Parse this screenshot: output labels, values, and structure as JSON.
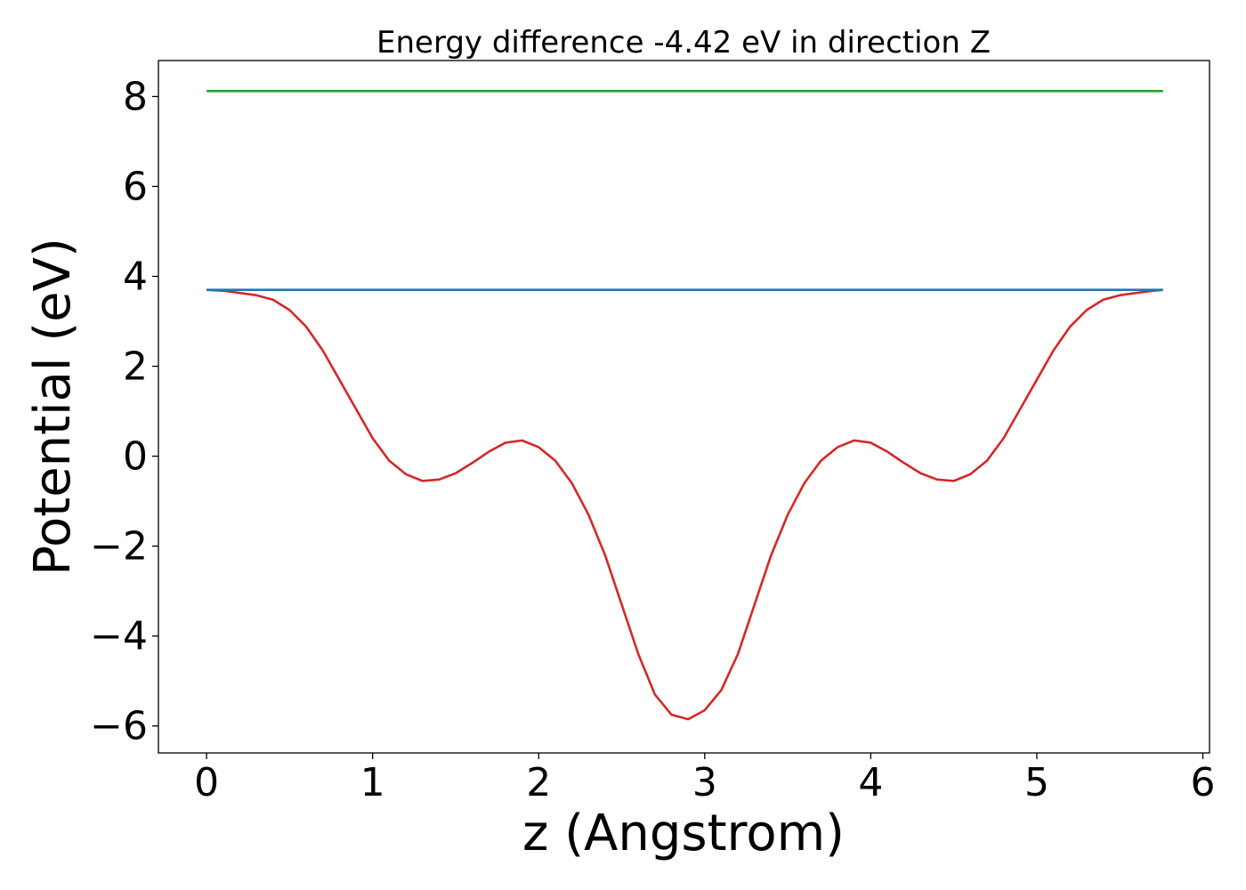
{
  "chart_data": {
    "type": "line",
    "title": "Energy difference -4.42 eV in direction Z",
    "xlabel": "z (Angstrom)",
    "ylabel": "Potential (eV)",
    "xlim": [
      -0.29,
      6.04
    ],
    "ylim": [
      -6.6,
      8.8
    ],
    "xticks": [
      0,
      1,
      2,
      3,
      4,
      5,
      6
    ],
    "xtick_labels": [
      "0",
      "1",
      "2",
      "3",
      "4",
      "5",
      "6"
    ],
    "yticks": [
      -6,
      -4,
      -2,
      0,
      2,
      4,
      6,
      8
    ],
    "ytick_labels": [
      "−6",
      "−4",
      "−2",
      "0",
      "2",
      "4",
      "6",
      "8"
    ],
    "grid": false,
    "legend": "none",
    "series": [
      {
        "color": "#d62728",
        "x": [
          0,
          0.1,
          0.2,
          0.3,
          0.4,
          0.5,
          0.6,
          0.7,
          0.8,
          0.9,
          1.0,
          1.1,
          1.2,
          1.3,
          1.4,
          1.5,
          1.6,
          1.7,
          1.8,
          1.9,
          2.0,
          2.1,
          2.2,
          2.3,
          2.4,
          2.5,
          2.6,
          2.7,
          2.8,
          2.9,
          3.0,
          3.1,
          3.2,
          3.3,
          3.4,
          3.5,
          3.6,
          3.7,
          3.8,
          3.9,
          4.0,
          4.1,
          4.2,
          4.3,
          4.4,
          4.5,
          4.6,
          4.7,
          4.8,
          4.9,
          5.0,
          5.1,
          5.2,
          5.3,
          5.4,
          5.5,
          5.6,
          5.7,
          5.76
        ],
        "y": [
          3.7,
          3.68,
          3.63,
          3.58,
          3.48,
          3.25,
          2.88,
          2.35,
          1.7,
          1.05,
          0.4,
          -0.1,
          -0.4,
          -0.55,
          -0.52,
          -0.38,
          -0.15,
          0.1,
          0.3,
          0.35,
          0.2,
          -0.1,
          -0.6,
          -1.3,
          -2.2,
          -3.3,
          -4.4,
          -5.3,
          -5.75,
          -5.85,
          -5.65,
          -5.2,
          -4.4,
          -3.3,
          -2.2,
          -1.3,
          -0.6,
          -0.1,
          0.2,
          0.35,
          0.3,
          0.1,
          -0.15,
          -0.38,
          -0.52,
          -0.55,
          -0.4,
          -0.1,
          0.4,
          1.05,
          1.7,
          2.35,
          2.88,
          3.25,
          3.48,
          3.58,
          3.63,
          3.68,
          3.7
        ]
      },
      {
        "color": "#1f77b4",
        "x": [
          0,
          5.76
        ],
        "y": [
          3.7,
          3.7
        ]
      },
      {
        "color": "#2ca02c",
        "x": [
          0,
          5.76
        ],
        "y": [
          8.12,
          8.12
        ]
      }
    ]
  }
}
